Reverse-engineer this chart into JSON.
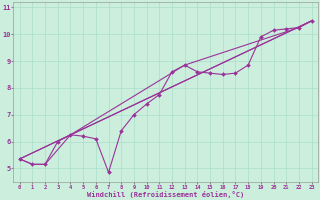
{
  "xlabel": "Windchill (Refroidissement éolien,°C)",
  "bg_color": "#cceedd",
  "line_color": "#993399",
  "xmin": -0.5,
  "xmax": 23.5,
  "ymin": 4.5,
  "ymax": 11.2,
  "yticks": [
    5,
    6,
    7,
    8,
    9,
    10,
    11
  ],
  "xticks": [
    0,
    1,
    2,
    3,
    4,
    5,
    6,
    7,
    8,
    9,
    10,
    11,
    12,
    13,
    14,
    15,
    16,
    17,
    18,
    19,
    20,
    21,
    22,
    23
  ],
  "series1_x": [
    0,
    1,
    2,
    3,
    4,
    5,
    6,
    7,
    8,
    9,
    10,
    11,
    12,
    13,
    14,
    15,
    16,
    17,
    18,
    19,
    20,
    21,
    22,
    23
  ],
  "series1_y": [
    5.35,
    5.15,
    5.15,
    6.0,
    6.25,
    6.2,
    6.1,
    4.85,
    6.4,
    7.0,
    7.4,
    7.75,
    8.6,
    8.85,
    8.6,
    8.55,
    8.5,
    8.55,
    8.85,
    9.9,
    10.15,
    10.2,
    10.25,
    10.5
  ],
  "series2_x": [
    0,
    1,
    2,
    4,
    13,
    22,
    23
  ],
  "series2_y": [
    5.35,
    5.15,
    5.15,
    6.25,
    8.85,
    10.25,
    10.5
  ],
  "series3_x": [
    0,
    23
  ],
  "series3_y": [
    5.35,
    10.5
  ],
  "series4_x": [
    0,
    4,
    23
  ],
  "series4_y": [
    5.35,
    6.25,
    10.5
  ],
  "xlabel_fontsize": 5.0,
  "tick_fontsize_x": 4.0,
  "tick_fontsize_y": 5.0,
  "grid_color": "#aaddcc",
  "lw": 0.8,
  "marker_size": 2.0
}
